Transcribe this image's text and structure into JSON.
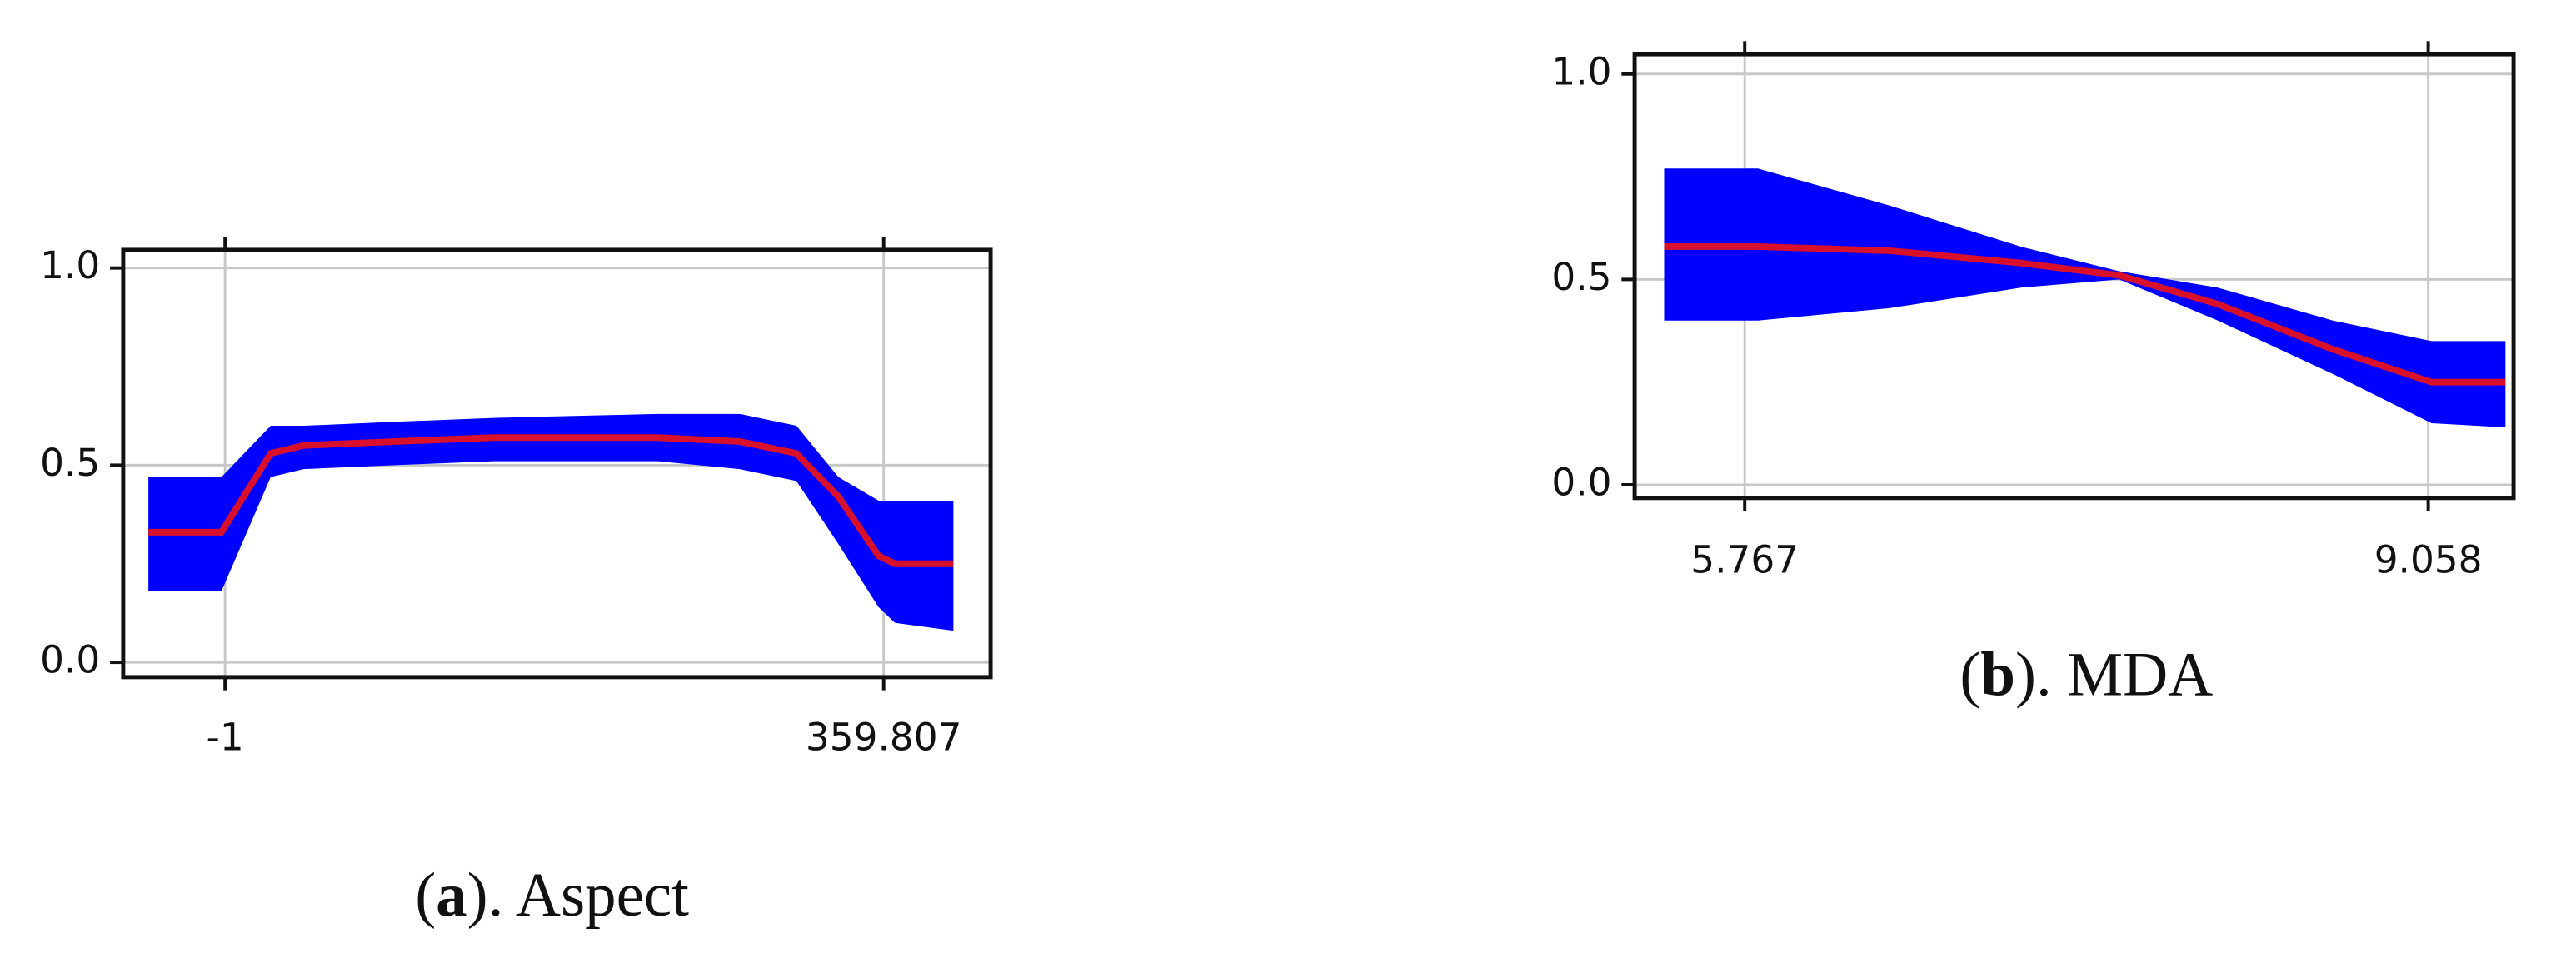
{
  "chart_data": [
    {
      "type": "band",
      "caption": [
        "(",
        "a",
        "). Aspect"
      ],
      "x": [
        -43,
        -3,
        24,
        42,
        92,
        146,
        236,
        281,
        312,
        335,
        357,
        366,
        398
      ],
      "mean": [
        0.33,
        0.33,
        0.53,
        0.55,
        0.56,
        0.57,
        0.57,
        0.56,
        0.53,
        0.42,
        0.27,
        0.25,
        0.25
      ],
      "upper": [
        0.47,
        0.47,
        0.6,
        0.6,
        0.61,
        0.62,
        0.63,
        0.63,
        0.6,
        0.47,
        0.41,
        0.41,
        0.41
      ],
      "lower": [
        0.18,
        0.18,
        0.47,
        0.49,
        0.5,
        0.51,
        0.51,
        0.49,
        0.46,
        0.3,
        0.14,
        0.1,
        0.08
      ],
      "line_color": "#d8102c",
      "band_color": "#0000ff",
      "xlim": [
        -56.8,
        418.4
      ],
      "xticks": [
        -1,
        359.807
      ],
      "ylim": [
        -0.0375,
        1.046
      ],
      "yticks": [
        {
          "value": 0,
          "label": "0.0"
        },
        0.5,
        {
          "value": 1,
          "label": "1.0"
        }
      ],
      "grid": true
    },
    {
      "type": "band",
      "caption": [
        "(",
        "b",
        "). MDA"
      ],
      "x": [
        5.379,
        5.83,
        6.463,
        7.096,
        7.57,
        8.045,
        8.599,
        9.074,
        9.43
      ],
      "mean": [
        0.58,
        0.58,
        0.57,
        0.54,
        0.51,
        0.44,
        0.33,
        0.25,
        0.25
      ],
      "upper": [
        0.77,
        0.77,
        0.68,
        0.58,
        0.52,
        0.48,
        0.4,
        0.35,
        0.35
      ],
      "lower": [
        0.4,
        0.4,
        0.43,
        0.48,
        0.5,
        0.4,
        0.27,
        0.15,
        0.14
      ],
      "line_color": "#d8102c",
      "band_color": "#0000ff",
      "xlim": [
        5.237,
        9.469
      ],
      "xticks": [
        5.767,
        9.058
      ],
      "ylim": [
        -0.032,
        1.048
      ],
      "yticks": [
        {
          "value": 0,
          "label": "0.0"
        },
        0.5,
        {
          "value": 1,
          "label": "1.0"
        }
      ],
      "grid": true
    }
  ]
}
